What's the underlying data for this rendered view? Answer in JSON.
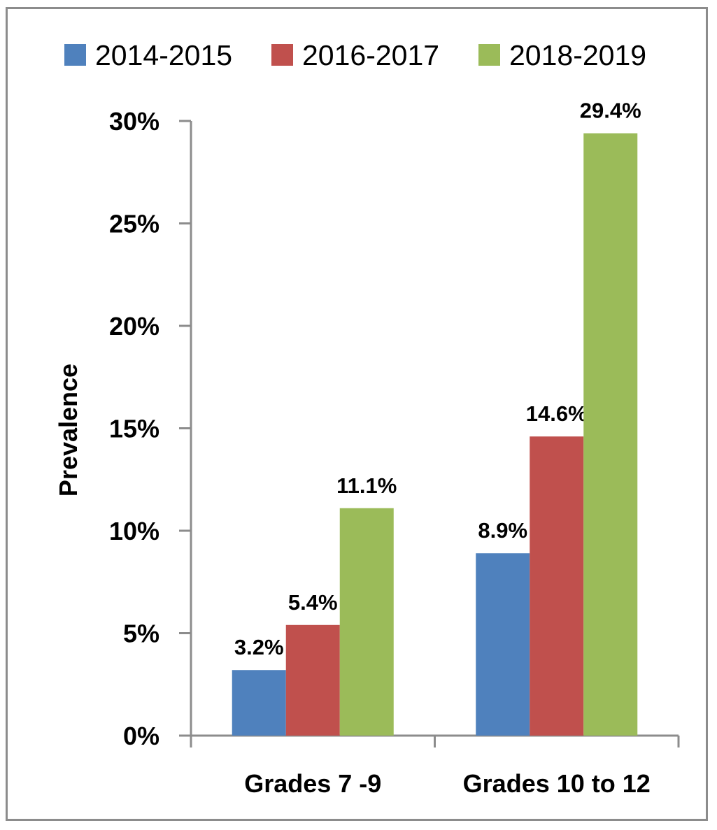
{
  "chart_data": {
    "type": "bar",
    "categories": [
      "Grades 7 -9",
      "Grades 10 to 12"
    ],
    "series": [
      {
        "name": "2014-2015",
        "values": [
          3.2,
          8.9
        ],
        "labels": [
          "3.2%",
          "8.9%"
        ],
        "color": "#4F81BD"
      },
      {
        "name": "2016-2017",
        "values": [
          5.4,
          14.6
        ],
        "labels": [
          "5.4%",
          "14.6%"
        ],
        "color": "#C0504D"
      },
      {
        "name": "2018-2019",
        "values": [
          11.1,
          29.4
        ],
        "labels": [
          "11.1%",
          "29.4%"
        ],
        "color": "#9BBB59"
      }
    ],
    "title": "",
    "xlabel": "",
    "ylabel": "Prevalence",
    "ylim": [
      0,
      30
    ],
    "yticks": [
      "0%",
      "5%",
      "10%",
      "15%",
      "20%",
      "25%",
      "30%"
    ],
    "grid": false,
    "legend": "top"
  }
}
